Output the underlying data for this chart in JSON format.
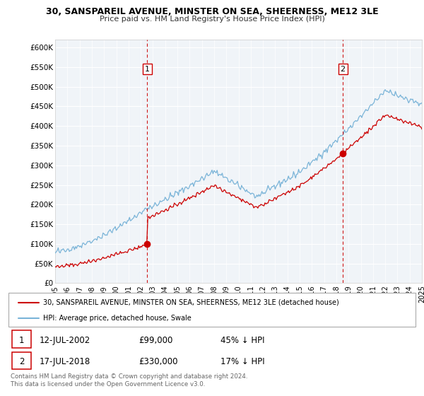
{
  "title": "30, SANSPAREIL AVENUE, MINSTER ON SEA, SHEERNESS, ME12 3LE",
  "subtitle": "Price paid vs. HM Land Registry's House Price Index (HPI)",
  "ylabel_ticks": [
    "£0",
    "£50K",
    "£100K",
    "£150K",
    "£200K",
    "£250K",
    "£300K",
    "£350K",
    "£400K",
    "£450K",
    "£500K",
    "£550K",
    "£600K"
  ],
  "ytick_values": [
    0,
    50000,
    100000,
    150000,
    200000,
    250000,
    300000,
    350000,
    400000,
    450000,
    500000,
    550000,
    600000
  ],
  "xlim_start": 1995.0,
  "xlim_end": 2025.0,
  "ylim": [
    0,
    620000
  ],
  "sale1_x": 2002.536,
  "sale1_y": 99000,
  "sale1_label": "1",
  "sale1_date": "12-JUL-2002",
  "sale1_price": "£99,000",
  "sale1_hpi": "45% ↓ HPI",
  "sale2_x": 2018.536,
  "sale2_y": 330000,
  "sale2_label": "2",
  "sale2_date": "17-JUL-2018",
  "sale2_price": "£330,000",
  "sale2_hpi": "17% ↓ HPI",
  "hpi_color": "#7ab4d8",
  "sale_color": "#cc0000",
  "vline_color": "#cc0000",
  "chart_bg": "#f0f4f8",
  "legend_line1": "30, SANSPAREIL AVENUE, MINSTER ON SEA, SHEERNESS, ME12 3LE (detached house)",
  "legend_line2": "HPI: Average price, detached house, Swale",
  "footnote": "Contains HM Land Registry data © Crown copyright and database right 2024.\nThis data is licensed under the Open Government Licence v3.0.",
  "xtick_years": [
    1995,
    1996,
    1997,
    1998,
    1999,
    2000,
    2001,
    2002,
    2003,
    2004,
    2005,
    2006,
    2007,
    2008,
    2009,
    2010,
    2011,
    2012,
    2013,
    2014,
    2015,
    2016,
    2017,
    2018,
    2019,
    2020,
    2021,
    2022,
    2023,
    2024,
    2025
  ]
}
